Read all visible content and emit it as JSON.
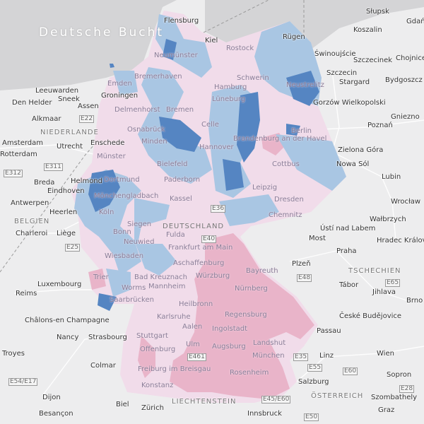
{
  "map": {
    "sea_label": "Deutsche Bucht",
    "colors": {
      "sea": "#d4d4d6",
      "land": "#eeeeef",
      "region_light_pink": "#f1dcea",
      "region_pink": "#e9b4c9",
      "region_light_blue": "#a9c6e3",
      "region_blue": "#7aa3d3",
      "region_dark_blue": "#4a77b4",
      "roads": "#ffffff"
    },
    "labels": [
      "Flensburg",
      "Kiel",
      "Neumünster",
      "Rostock",
      "Rügen",
      "Bremerhaven",
      "Emden",
      "Hamburg",
      "Schwerin",
      "Leeuwarden",
      "Groningen",
      "Bremen",
      "Delmenhorst",
      "Den Helder",
      "Sneek",
      "Assen",
      "Alkmaar",
      "NIEDERLANDE",
      "Amsterdam",
      "Utrecht",
      "Enschede",
      "Rotterdam",
      "Münster",
      "Minden",
      "Hannover",
      "Bielefeld",
      "Berlin",
      "Brandenburg an der Havel",
      "Dortmund",
      "Dresden",
      "Leipzig",
      "Paderborn",
      "Kassel",
      "Mönchengladbach",
      "Breda",
      "Eindhoven",
      "Helmond",
      "Antwerpen",
      "Heerlen",
      "BELGIEN",
      "Köln",
      "Bonn",
      "DEUTSCHLAND",
      "Charleroi",
      "Liège",
      "Siegen",
      "Fulda",
      "Wiesbaden",
      "Frankfurt am Main",
      "Neuwied",
      "Aschaffenburg",
      "Würzburg",
      "Luxembourg",
      "Reims",
      "Mannheim",
      "Worms",
      "Bad Kreuznach",
      "Heilbronn",
      "Karlsruhe",
      "Aalen",
      "Stuttgart",
      "Strasbourg",
      "Nancy",
      "Châlons-en Champagne",
      "Troyes",
      "Colmar",
      "Offenburg",
      "Ulm",
      "Freiburg im Breisgau",
      "Konstanz",
      "Dijon",
      "Besançon",
      "Zürich",
      "Biel",
      "LIECHTENSTEIN",
      "Augsburg",
      "München",
      "Ingolstadt",
      "Regensburg",
      "Nürnberg",
      "Bayreuth",
      "Landshut",
      "Rosenheim",
      "Passau",
      "Salzburg",
      "Innsbruck",
      "Linz",
      "Wien",
      "Graz",
      "Sopron",
      "Szombathely",
      "ÖSTERREICH",
      "Praha",
      "Plzeň",
      "Most",
      "Ústí nad Labem",
      "TSCHECHIEN",
      "Tábor",
      "Jihlava",
      "Brno",
      "České Budějovice",
      "Hradec Králové",
      "Wałbrzych",
      "Wrocław",
      "Lubin",
      "Zielona Góra",
      "Nowa Sól",
      "Poznań",
      "Gniezno",
      "Gorzów Wielkopolski",
      "Szczecin",
      "Stargard",
      "Bydgoszcz",
      "Koszalin",
      "Słupsk",
      "Gdańsk",
      "Świnoujście",
      "Chojnice",
      "Szczecinek",
      "Cottbus",
      "Neustrelitz",
      "Chemnitz",
      "Saarbrücken",
      "Trier",
      "Osnabrück",
      "Celle",
      "Lüneburg"
    ],
    "road_labels": [
      "E22",
      "E311",
      "E25",
      "E312",
      "E55",
      "E48",
      "E65",
      "E40",
      "E36",
      "E60",
      "E461",
      "E45/E60",
      "E54/E17",
      "E50",
      "E35",
      "E28"
    ]
  }
}
